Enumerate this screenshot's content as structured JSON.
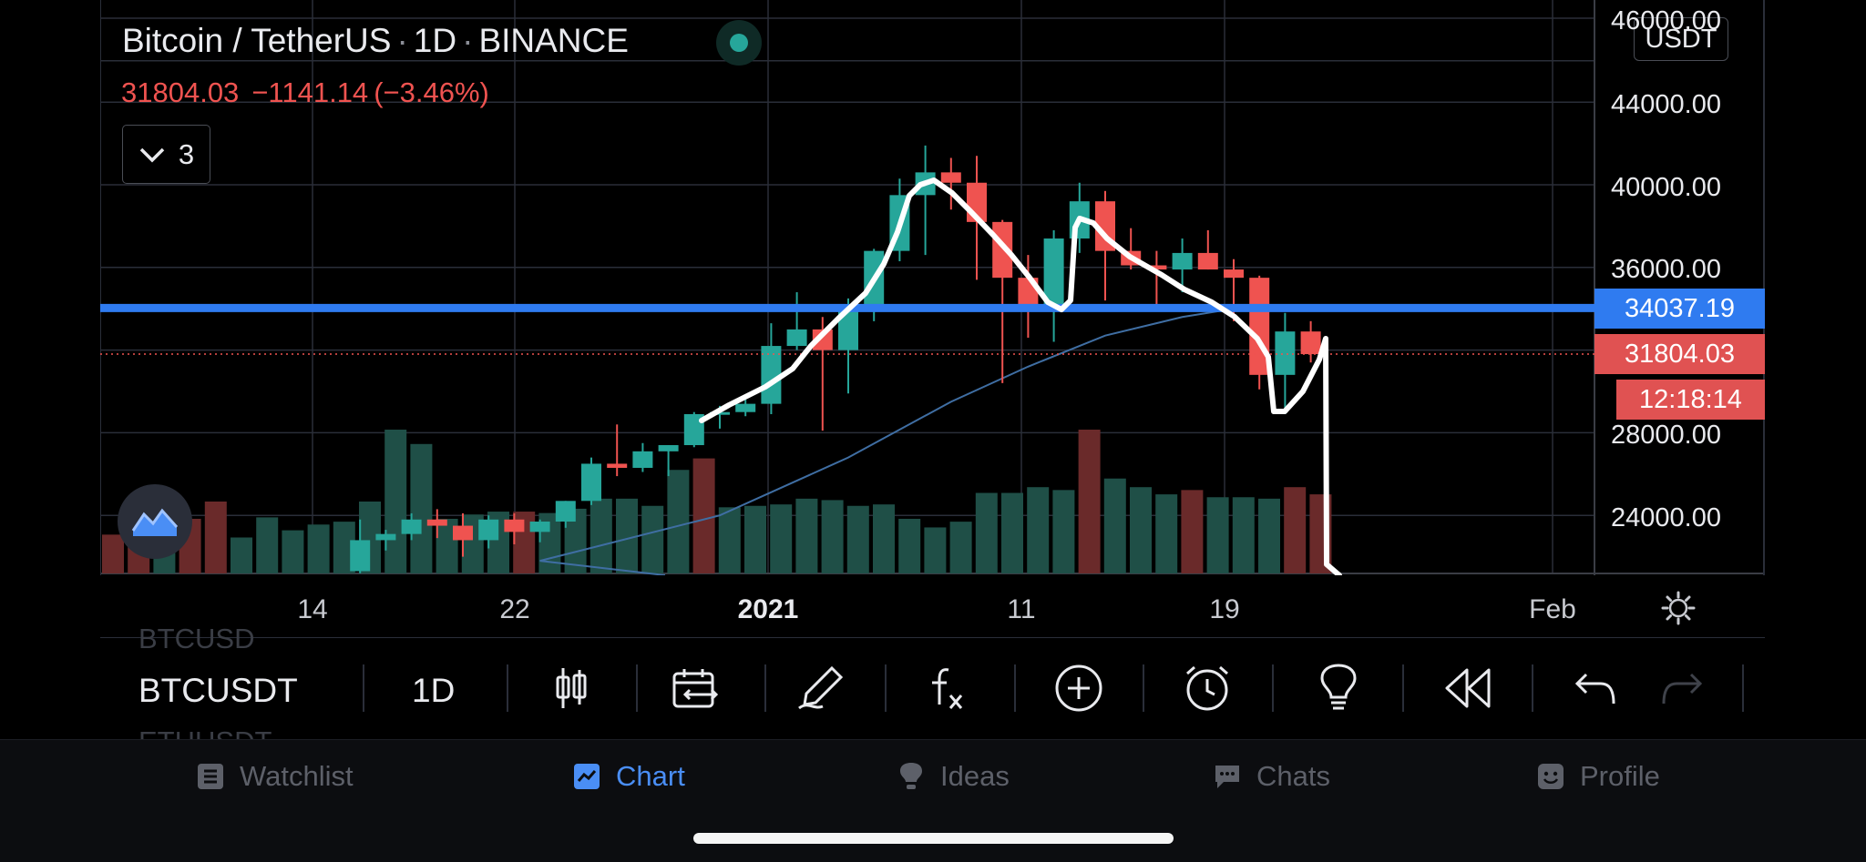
{
  "legend": {
    "title": "Bitcoin / TetherUS",
    "sep": "·",
    "interval": "1D",
    "exchange": "BINANCE",
    "last": "31804.03",
    "change": "−1141.14",
    "change_pct": "(−3.46%)",
    "indicators_count": "3"
  },
  "currency_button": "USDT",
  "price_axis": {
    "labels": [
      "46000.00",
      "44000.00",
      "40000.00",
      "36000.00",
      "28000.00",
      "24000.00"
    ],
    "blue_line_tag": "34037.19",
    "last_price_tag": "31804.03",
    "countdown_tag": "12:18:14"
  },
  "time_axis": {
    "labels": [
      "14",
      "22",
      "2021",
      "11",
      "19",
      "Feb"
    ]
  },
  "chart_data": {
    "type": "candlestick",
    "symbol": "BTCUSDT",
    "interval": "1D",
    "candles": [
      {
        "d": "Dec 17",
        "o": 21300,
        "h": 23800,
        "l": 21200,
        "c": 22800
      },
      {
        "d": "Dec 18",
        "o": 22800,
        "h": 23300,
        "l": 22300,
        "c": 23100
      },
      {
        "d": "Dec 19",
        "o": 23100,
        "h": 24100,
        "l": 22800,
        "c": 23800
      },
      {
        "d": "Dec 20",
        "o": 23800,
        "h": 24300,
        "l": 22900,
        "c": 23500
      },
      {
        "d": "Dec 21",
        "o": 23500,
        "h": 24100,
        "l": 22000,
        "c": 22800
      },
      {
        "d": "Dec 22",
        "o": 22800,
        "h": 24000,
        "l": 22400,
        "c": 23800
      },
      {
        "d": "Dec 23",
        "o": 23800,
        "h": 24100,
        "l": 22600,
        "c": 23200
      },
      {
        "d": "Dec 24",
        "o": 23200,
        "h": 23800,
        "l": 22700,
        "c": 23700
      },
      {
        "d": "Dec 25",
        "o": 23700,
        "h": 24700,
        "l": 23400,
        "c": 24700
      },
      {
        "d": "Dec 26",
        "o": 24700,
        "h": 26800,
        "l": 24500,
        "c": 26500
      },
      {
        "d": "Dec 27",
        "o": 26500,
        "h": 28400,
        "l": 25900,
        "c": 26300
      },
      {
        "d": "Dec 28",
        "o": 26300,
        "h": 27500,
        "l": 26100,
        "c": 27100
      },
      {
        "d": "Dec 29",
        "o": 27100,
        "h": 27400,
        "l": 25900,
        "c": 27400
      },
      {
        "d": "Dec 30",
        "o": 27400,
        "h": 29000,
        "l": 27300,
        "c": 28900
      },
      {
        "d": "Dec 31",
        "o": 28900,
        "h": 29300,
        "l": 28200,
        "c": 29000
      },
      {
        "d": "Jan 1",
        "o": 29000,
        "h": 29600,
        "l": 28800,
        "c": 29400
      },
      {
        "d": "Jan 2",
        "o": 29400,
        "h": 33300,
        "l": 28900,
        "c": 32200
      },
      {
        "d": "Jan 3",
        "o": 32200,
        "h": 34800,
        "l": 32000,
        "c": 33000
      },
      {
        "d": "Jan 4",
        "o": 33000,
        "h": 33600,
        "l": 28100,
        "c": 32000
      },
      {
        "d": "Jan 5",
        "o": 32000,
        "h": 34500,
        "l": 29900,
        "c": 34000
      },
      {
        "d": "Jan 6",
        "o": 34000,
        "h": 36900,
        "l": 33400,
        "c": 36800
      },
      {
        "d": "Jan 7",
        "o": 36800,
        "h": 40300,
        "l": 36300,
        "c": 39500
      },
      {
        "d": "Jan 8",
        "o": 39500,
        "h": 41900,
        "l": 36600,
        "c": 40600
      },
      {
        "d": "Jan 9",
        "o": 40600,
        "h": 41300,
        "l": 38800,
        "c": 40100
      },
      {
        "d": "Jan 10",
        "o": 40100,
        "h": 41400,
        "l": 35400,
        "c": 38200
      },
      {
        "d": "Jan 11",
        "o": 38200,
        "h": 38300,
        "l": 30400,
        "c": 35500
      },
      {
        "d": "Jan 12",
        "o": 35500,
        "h": 36600,
        "l": 32600,
        "c": 34100
      },
      {
        "d": "Jan 13",
        "o": 34100,
        "h": 37800,
        "l": 32400,
        "c": 37400
      },
      {
        "d": "Jan 14",
        "o": 37400,
        "h": 40100,
        "l": 36700,
        "c": 39200
      },
      {
        "d": "Jan 15",
        "o": 39200,
        "h": 39700,
        "l": 34400,
        "c": 36800
      },
      {
        "d": "Jan 16",
        "o": 36800,
        "h": 37900,
        "l": 35900,
        "c": 36100
      },
      {
        "d": "Jan 17",
        "o": 36100,
        "h": 36800,
        "l": 33900,
        "c": 35900
      },
      {
        "d": "Jan 18",
        "o": 35900,
        "h": 37400,
        "l": 34800,
        "c": 36700
      },
      {
        "d": "Jan 19",
        "o": 36700,
        "h": 37800,
        "l": 35900,
        "c": 35900
      },
      {
        "d": "Jan 20",
        "o": 35900,
        "h": 36400,
        "l": 33400,
        "c": 35500
      },
      {
        "d": "Jan 21",
        "o": 35500,
        "h": 35600,
        "l": 30100,
        "c": 30800
      },
      {
        "d": "Jan 22",
        "o": 30800,
        "h": 33800,
        "l": 28900,
        "c": 32900
      },
      {
        "d": "Jan 23",
        "o": 32900,
        "h": 33400,
        "l": 31400,
        "c": 31804
      }
    ],
    "volume_colors": [
      "red",
      "red",
      "green",
      "red",
      "red",
      "green",
      "green",
      "green",
      "green",
      "green",
      "green",
      "green",
      "green",
      "green",
      "green",
      "green",
      "red",
      "green",
      "green",
      "green",
      "green",
      "green",
      "green",
      "red",
      "green",
      "green",
      "green",
      "green",
      "green",
      "green",
      "green",
      "green",
      "green",
      "green",
      "green",
      "green",
      "green",
      "green",
      "red",
      "green",
      "green",
      "green",
      "red",
      "green",
      "green",
      "green",
      "red",
      "red",
      "green",
      "green",
      "red",
      "red",
      "green",
      "green",
      "red",
      "red",
      "red",
      "green",
      "green",
      "red",
      "red",
      "red",
      "green",
      "red",
      "red"
    ],
    "volume_levels": [
      0.27,
      0.32,
      0.25,
      0.38,
      0.5,
      0.25,
      0.39,
      0.3,
      0.34,
      0.36,
      0.5,
      1.0,
      0.9,
      0.38,
      0.41,
      0.43,
      0.43,
      0.42,
      0.45,
      0.52,
      0.52,
      0.47,
      0.72,
      0.8,
      0.46,
      0.47,
      0.48,
      0.52,
      0.51,
      0.47,
      0.48,
      0.38,
      0.32,
      0.36,
      0.56,
      0.56,
      0.6,
      0.58,
      1.0,
      0.66,
      0.6,
      0.55,
      0.58,
      0.53,
      0.53,
      0.52,
      0.6,
      0.55,
      0.62,
      0.61,
      0.55,
      0.58,
      0.62,
      0.5,
      0.55,
      0.55,
      0.55,
      0.5,
      0.48,
      0.55,
      0.6,
      0.68,
      0.68,
      0.62,
      0.2
    ],
    "sma": [
      {
        "d": "Dec 24",
        "v": 21800
      },
      {
        "d": "Dec 31",
        "v": 24000
      },
      {
        "d": "Jan 5",
        "v": 26800
      },
      {
        "d": "Jan 9",
        "v": 29500
      },
      {
        "d": "Jan 12",
        "v": 31200
      },
      {
        "d": "Jan 15",
        "v": 32700
      },
      {
        "d": "Jan 18",
        "v": 33600
      },
      {
        "d": "Jan 20",
        "v": 34000
      },
      {
        "d": "Jan 22",
        "v": 34000
      }
    ],
    "horizontal_line": 34037.19,
    "last_price": 31804.03,
    "price_axis_ticks": [
      46000,
      44000,
      40000,
      36000,
      28000,
      24000
    ],
    "time_axis_ticks": [
      "14",
      "22",
      "2021",
      "11",
      "19",
      "Feb"
    ]
  },
  "toolbar": {
    "ghost_symbol_above": "BTCUSD",
    "symbol": "BTCUSDT",
    "interval": "1D",
    "ghost_symbol_below": "ETHUSDT",
    "icons": [
      "candles-icon",
      "calendar-range-icon",
      "drawing-pen-icon",
      "fx-indicators-icon",
      "add-circle-icon",
      "alarm-clock-icon",
      "lightbulb-icon",
      "replay-rewind-icon",
      "undo-icon",
      "redo-icon"
    ]
  },
  "nav": {
    "watchlist": "Watchlist",
    "chart": "Chart",
    "ideas": "Ideas",
    "chats": "Chats",
    "profile": "Profile"
  },
  "colors": {
    "bull": "#26a69a",
    "bear": "#ef5350",
    "volume_bull": "#1f4f47",
    "volume_bear": "#6a2a2a",
    "horizontal_line": "#2f7bf0",
    "sma": "#3f6ea3",
    "accent": "#4a8ef5"
  }
}
